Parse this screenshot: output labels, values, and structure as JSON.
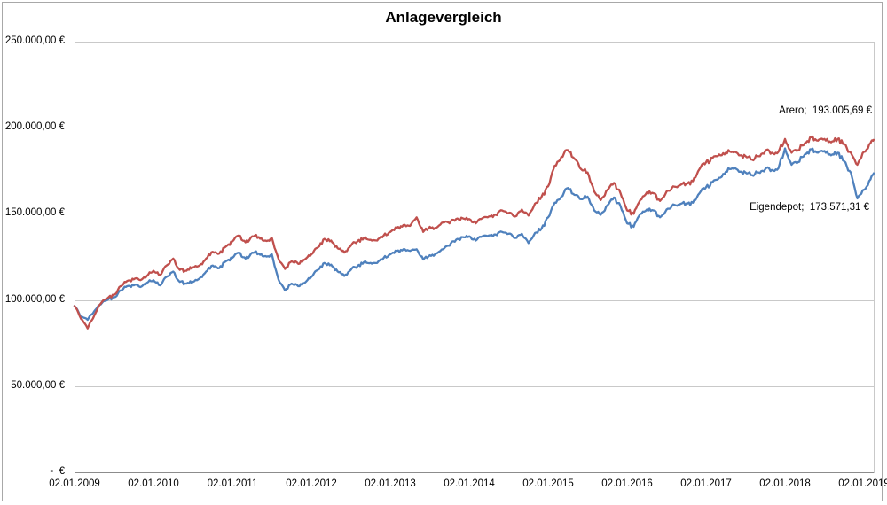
{
  "chart_data": {
    "type": "line",
    "title": "Anlagevergleich",
    "legend": "none",
    "grid": "horizontal",
    "ylim": [
      0,
      250000
    ],
    "y_ticks": [
      {
        "value": 0,
        "label": "-  €"
      },
      {
        "value": 50000,
        "label": "50.000,00 €"
      },
      {
        "value": 100000,
        "label": "100.000,00 €"
      },
      {
        "value": 150000,
        "label": "150.000,00 €"
      },
      {
        "value": 200000,
        "label": "200.000,00 €"
      },
      {
        "value": 250000,
        "label": "250.000,00 €"
      }
    ],
    "x_tick_labels": [
      "02.01.2009",
      "02.01.2010",
      "02.01.2011",
      "02.01.2012",
      "02.01.2013",
      "02.01.2014",
      "02.01.2015",
      "02.01.2016",
      "02.01.2017",
      "02.01.2018",
      "02.01.2019"
    ],
    "x_unit": "monthly samples starting 02.01.2009, last point mid-Feb 2019",
    "series": [
      {
        "name": "Eigendepot",
        "color": "#4F81BD",
        "final_value_eur": 173571.31,
        "final_label": "Eigendepot;  173.571,31 €",
        "values_eur": [
          96500,
          90000,
          88500,
          93500,
          97500,
          100000,
          101500,
          105500,
          108000,
          108500,
          107500,
          110000,
          111500,
          108500,
          113500,
          116500,
          110500,
          109500,
          110500,
          112500,
          116500,
          120000,
          118500,
          122500,
          124500,
          127500,
          124000,
          127500,
          127000,
          125500,
          126500,
          112000,
          105500,
          109500,
          108000,
          110000,
          113500,
          117500,
          121500,
          120500,
          116500,
          114000,
          117500,
          119500,
          122000,
          121500,
          121500,
          124500,
          126500,
          128500,
          129500,
          128500,
          129500,
          123500,
          126000,
          127000,
          129500,
          131500,
          135000,
          136500,
          137000,
          134500,
          137000,
          137500,
          138000,
          139500,
          138500,
          136000,
          138500,
          133000,
          139000,
          141500,
          148000,
          156500,
          160000,
          165000,
          161000,
          158500,
          160000,
          152000,
          149500,
          155000,
          159500,
          154500,
          144500,
          142500,
          150000,
          152500,
          152000,
          148000,
          152500,
          155500,
          155500,
          156000,
          156500,
          162000,
          165500,
          168500,
          171000,
          174500,
          176500,
          174500,
          174000,
          172500,
          174000,
          176000,
          175500,
          176500,
          188000,
          178500,
          180000,
          184500,
          187500,
          185500,
          186500,
          184000,
          185500,
          180500,
          174000,
          159000,
          164000,
          170000,
          173571.31
        ]
      },
      {
        "name": "Arero",
        "color": "#C0504D",
        "final_value_eur": 193005.69,
        "final_label": "Arero;  193.005,69 €",
        "values_eur": [
          96500,
          89000,
          83500,
          91000,
          98000,
          101000,
          103000,
          108000,
          111000,
          112000,
          111500,
          114000,
          117000,
          114500,
          120000,
          124000,
          117500,
          117000,
          119000,
          120000,
          124000,
          128000,
          127000,
          131000,
          134000,
          137500,
          133500,
          137000,
          136500,
          134500,
          136000,
          124000,
          118000,
          122500,
          121000,
          123500,
          126500,
          130500,
          135500,
          134500,
          130000,
          127500,
          131500,
          134000,
          136000,
          135000,
          134500,
          137500,
          139500,
          142000,
          143500,
          143000,
          148000,
          139500,
          142500,
          142000,
          145000,
          144500,
          147000,
          147500,
          147000,
          144500,
          147500,
          148500,
          149500,
          152000,
          150500,
          148500,
          152500,
          149000,
          156000,
          160000,
          166000,
          178000,
          183000,
          187000,
          182000,
          176000,
          174000,
          163000,
          158000,
          164000,
          168000,
          162000,
          152000,
          150000,
          158000,
          162500,
          162000,
          157500,
          163000,
          166000,
          166500,
          167500,
          169000,
          176000,
          180000,
          182500,
          184500,
          185500,
          186000,
          184000,
          183500,
          181500,
          183500,
          186500,
          185500,
          186000,
          193500,
          185500,
          187000,
          191000,
          194500,
          192500,
          193500,
          191500,
          193500,
          190500,
          185500,
          178500,
          186000,
          191000,
          193005.69
        ]
      }
    ],
    "colors": {
      "gridline": "#C9C9C9",
      "y_axis_line": "#B3B3B3",
      "plot_right_border": "#C9C9C9",
      "x_axis_line": "#8C8C8C",
      "chart_border": "#A8A8A8",
      "text": "#1a1a1a"
    }
  }
}
